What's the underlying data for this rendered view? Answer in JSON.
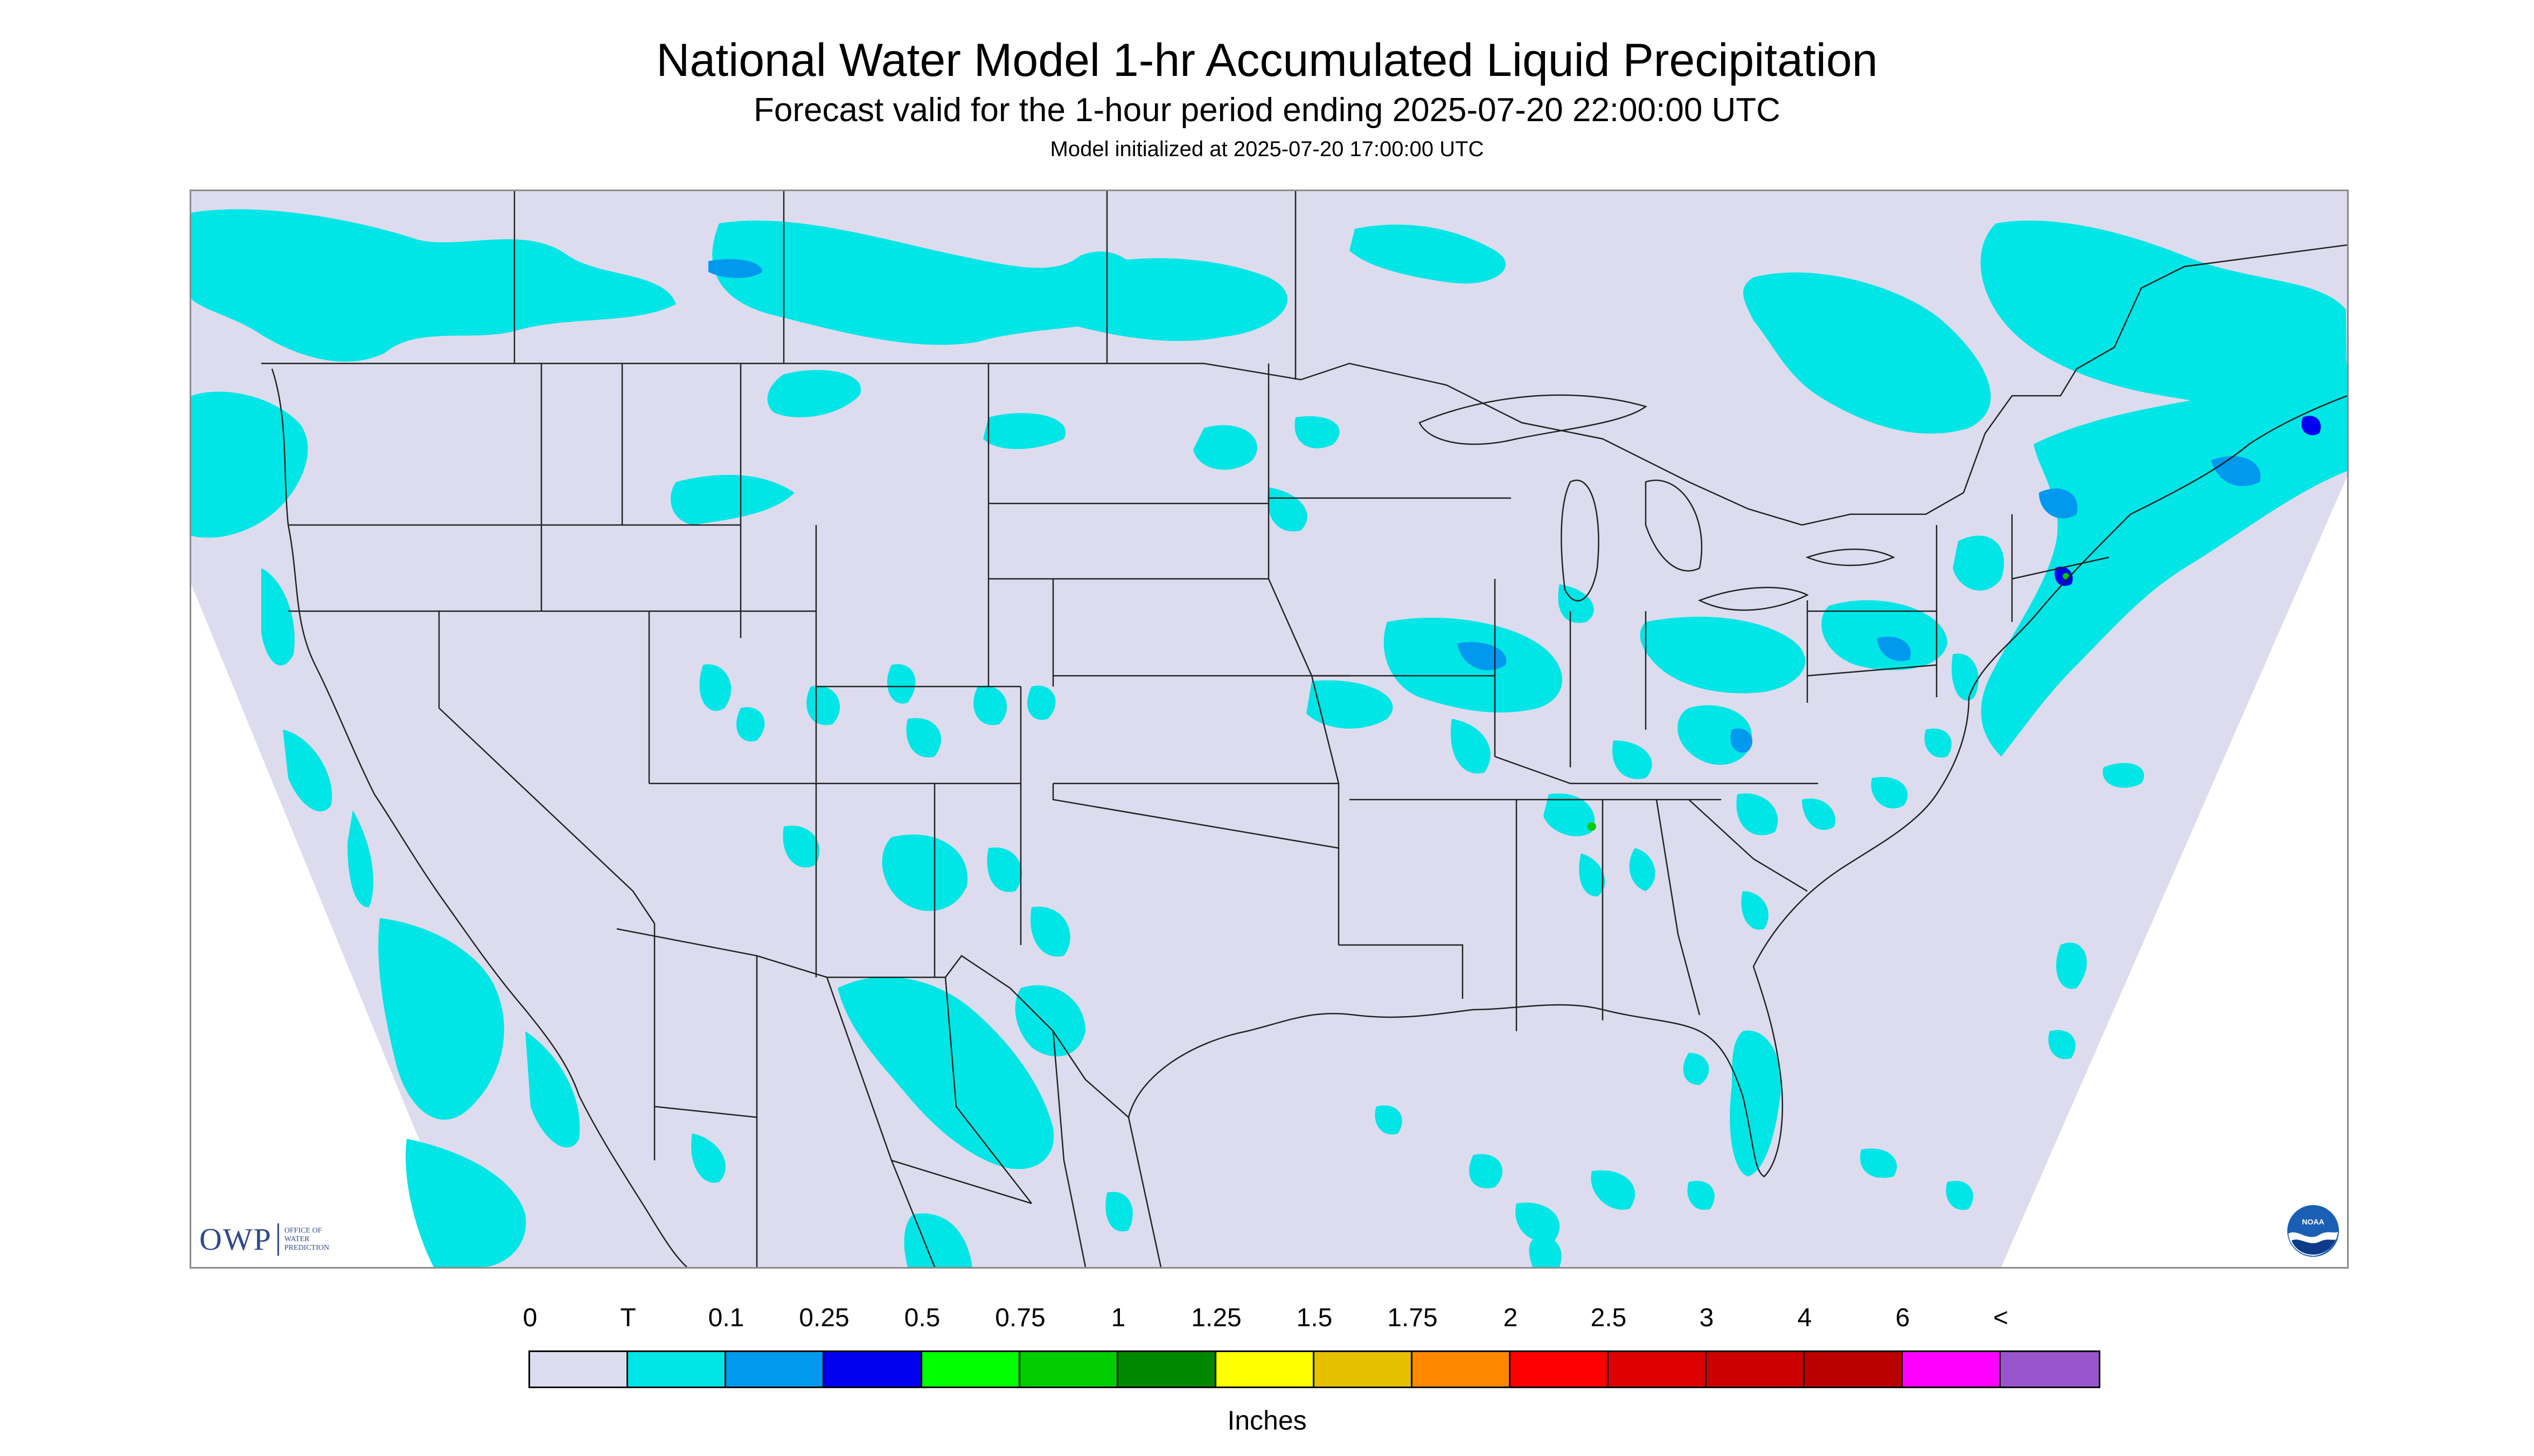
{
  "header": {
    "title": "National Water Model 1-hr Accumulated Liquid Precipitation",
    "subtitle": "Forecast valid for the 1-hour period ending 2025-07-20 22:00:00 UTC",
    "init": "Model initialized at 2025-07-20 17:00:00 UTC"
  },
  "logos": {
    "owp_text": "OWP",
    "owp_sub_1": "OFFICE OF",
    "owp_sub_2": "WATER",
    "owp_sub_3": "PREDICTION",
    "noaa_text": "NOAA"
  },
  "legend": {
    "units": "Inches",
    "labels": [
      "0",
      "T",
      "0.1",
      "0.25",
      "0.5",
      "0.75",
      "1",
      "1.25",
      "1.5",
      "1.75",
      "2",
      "2.5",
      "3",
      "4",
      "6",
      "<"
    ],
    "colors": [
      "#dcdcee",
      "#00e5e5",
      "#0099ee",
      "#0000ee",
      "#00ff00",
      "#00cc00",
      "#008800",
      "#ffff00",
      "#e5c000",
      "#ff8800",
      "#ff0000",
      "#dd0000",
      "#cc0000",
      "#bb0000",
      "#ff00ff",
      "#9955cc"
    ]
  },
  "map": {
    "background_color": "#dcdcee",
    "outside_color": "#ffffff",
    "trace_color": "#00e5e5",
    "light_color": "#0099ee",
    "heavy_color": "#0000ee",
    "green_color": "#00cc00"
  }
}
